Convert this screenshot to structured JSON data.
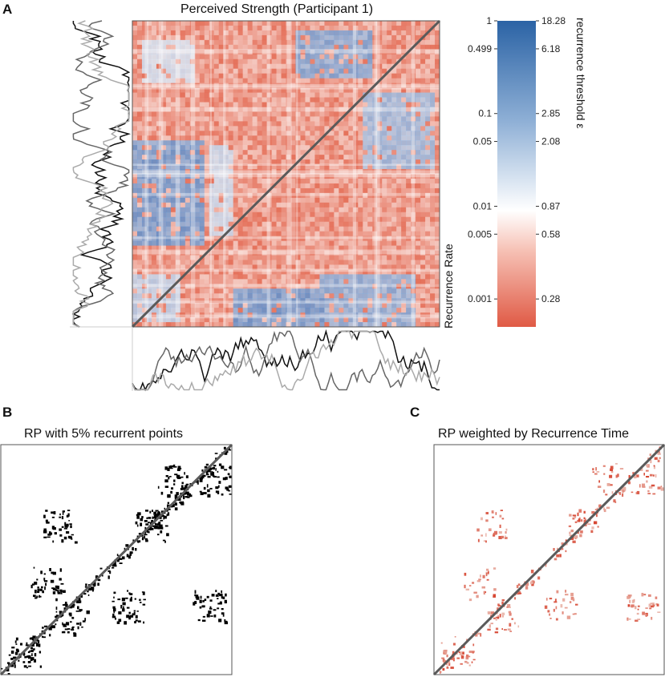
{
  "panel_labels": {
    "a": "A",
    "b": "B",
    "c": "C"
  },
  "chart_data": [
    {
      "type": "heatmap",
      "panel": "A",
      "title": "Perceived Strength (Participant 1)",
      "description_series": [
        "series-1 (black)",
        "series-2 (dark grey)",
        "series-3 (light grey)"
      ],
      "diagonal": "line of identity",
      "colorbar": {
        "left_label": "Recurrence Rate",
        "right_label": "recurrence threshold ε",
        "recurrence_rate_ticks": [
          "1",
          "0.499",
          "0.1",
          "0.05",
          "0.01",
          "0.005",
          "0.001"
        ],
        "recurrence_rate_values": [
          1,
          0.499,
          0.1,
          0.05,
          0.01,
          0.005,
          0.001
        ],
        "threshold_ticks": [
          "18.28",
          "6.18",
          "2.85",
          "2.08",
          "0.87",
          "0.58",
          "0.28"
        ],
        "threshold_values": [
          18.28,
          6.18,
          2.85,
          2.08,
          0.87,
          0.58,
          0.28
        ],
        "colors": {
          "high": "#2b63a5",
          "mid": "#ffffff",
          "low": "#e05a45"
        }
      }
    },
    {
      "type": "heatmap",
      "panel": "B",
      "title": "RP with 5% recurrent points",
      "recurrence_rate": 0.05,
      "colors": {
        "recurrent": "#000000",
        "background": "#ffffff",
        "diagonal": "#5a5a5a"
      }
    },
    {
      "type": "heatmap",
      "panel": "C",
      "title": "RP weighted by Recurrence Time",
      "colors": {
        "recurrent": "#e05a45",
        "background": "#ffffff",
        "diagonal": "#5a5a5a"
      }
    }
  ]
}
